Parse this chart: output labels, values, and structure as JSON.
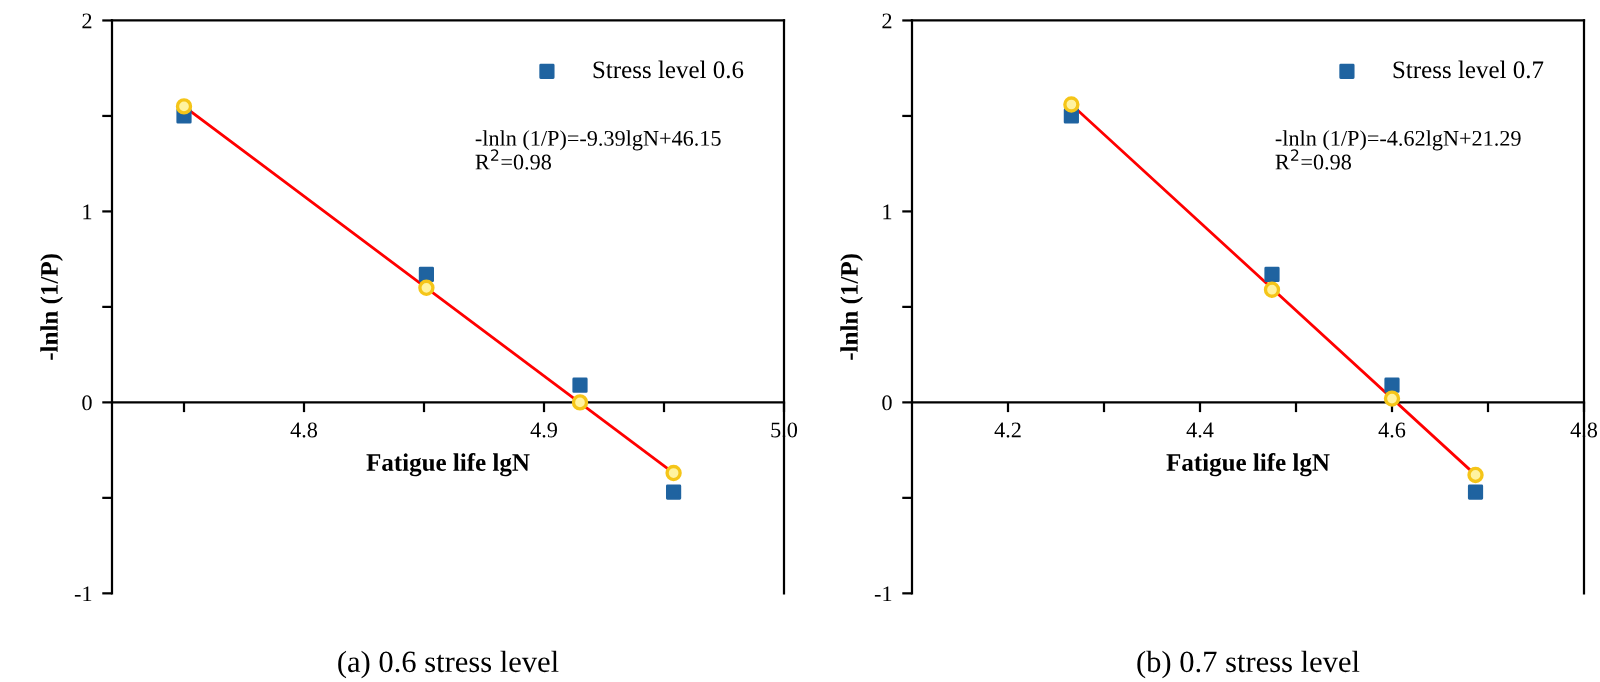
{
  "chart_data": [
    {
      "type": "scatter",
      "xlabel": "Fatigue life lgN",
      "ylabel": "-lnln (1/P)",
      "xlim": [
        4.72,
        5.0
      ],
      "ylim": [
        -1,
        2
      ],
      "xticks": [
        {
          "value": 4.75,
          "label": null
        },
        4.8,
        {
          "value": 4.85,
          "label": null
        },
        4.9,
        {
          "value": 4.95,
          "label": null
        },
        {
          "value": 5.0,
          "label": "5.0"
        }
      ],
      "yticks": [
        -1,
        {
          "value": -0.5,
          "label": null
        },
        0,
        {
          "value": 0.5,
          "label": null
        },
        1,
        {
          "value": 1.5,
          "label": null
        },
        2
      ],
      "x": [
        4.75,
        4.851,
        4.915,
        4.954
      ],
      "legend": "top right",
      "grid": false,
      "series": [
        {
          "name": "Stress level 0.6",
          "color": "#1f63a0",
          "marker": "square",
          "values": [
            1.5,
            0.67,
            0.09,
            -0.47
          ]
        },
        {
          "type": "scatter",
          "color": "#f5c518",
          "marker": "circle",
          "values": [
            1.55,
            0.6,
            0.0,
            -0.37
          ]
        },
        {
          "type": "line",
          "color": "#ff0000",
          "marker": "none",
          "x": [
            4.75,
            4.954
          ],
          "values": [
            1.55,
            -0.37
          ]
        }
      ],
      "annotations": [
        "-lnln (1/P)=-9.39lgN+46.15\nR$^{2}$=0.98",
        "(a) 0.6 stress level"
      ]
    },
    {
      "type": "scatter",
      "xlabel": "Fatigue life lgN",
      "ylabel": "-lnln (1/P)",
      "xlim": [
        4.1,
        4.8
      ],
      "ylim": [
        -1,
        2
      ],
      "xticks": [
        4.2,
        {
          "value": 4.3,
          "label": null
        },
        4.4,
        {
          "value": 4.5,
          "label": null
        },
        4.6,
        {
          "value": 4.7,
          "label": null
        },
        4.8
      ],
      "yticks": [
        -1,
        {
          "value": -0.5,
          "label": null
        },
        0,
        {
          "value": 0.5,
          "label": null
        },
        1,
        {
          "value": 1.5,
          "label": null
        },
        2
      ],
      "x": [
        4.266,
        4.475,
        4.6,
        4.687
      ],
      "legend": "top right",
      "grid": false,
      "series": [
        {
          "name": "Stress level 0.7",
          "color": "#1f63a0",
          "marker": "square",
          "values": [
            1.5,
            0.67,
            0.09,
            -0.47
          ]
        },
        {
          "type": "scatter",
          "color": "#f5c518",
          "marker": "circle",
          "values": [
            1.56,
            0.59,
            0.02,
            -0.38
          ]
        },
        {
          "type": "line",
          "color": "#ff0000",
          "marker": "none",
          "x": [
            4.266,
            4.687
          ],
          "values": [
            1.56,
            -0.38
          ]
        }
      ],
      "annotations": [
        "-lnln (1/P)=-4.62lgN+21.29\nR$^{2}$=0.98",
        "(b) 0.7 stress level"
      ]
    }
  ]
}
